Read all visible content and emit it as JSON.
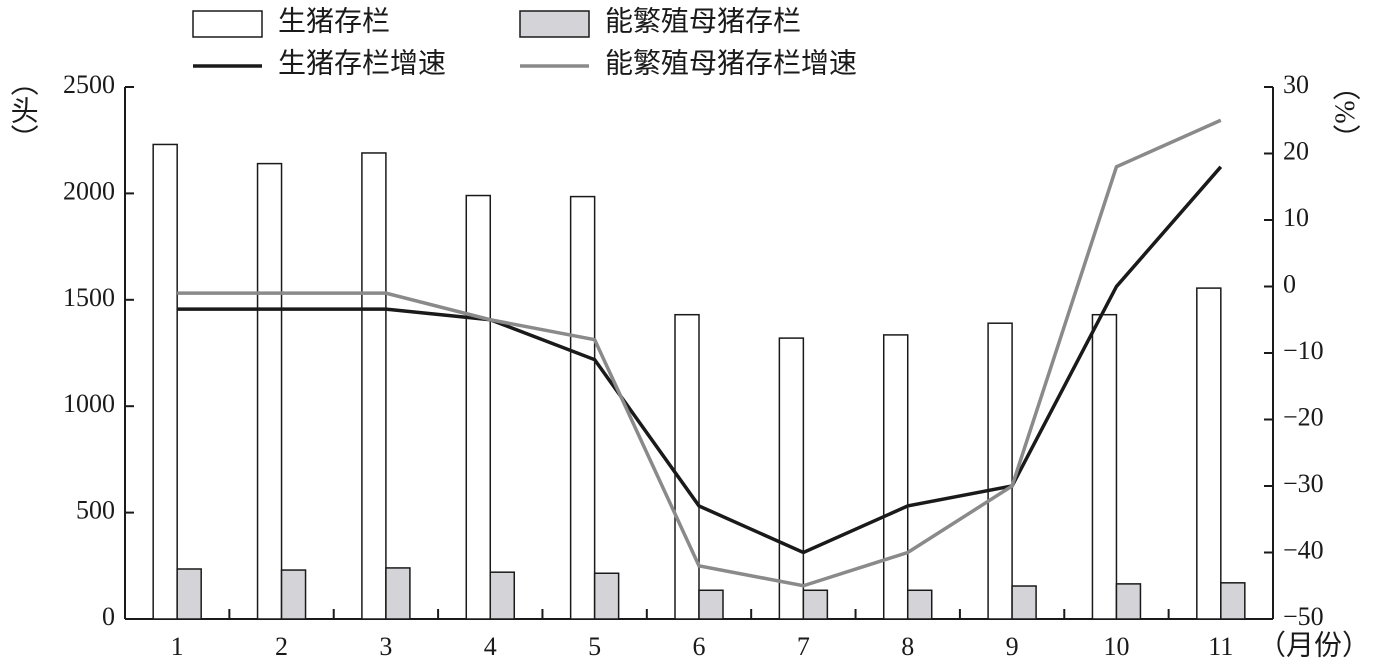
{
  "chart_data": {
    "type": "bar",
    "ylabel": "（头）",
    "y2label": "（%）",
    "xlabel": "（月份）",
    "categories": [
      "1",
      "2",
      "3",
      "4",
      "5",
      "6",
      "7",
      "8",
      "9",
      "10",
      "11"
    ],
    "series": [
      {
        "name": "生猪存栏",
        "type": "bar",
        "axis": "y",
        "color": "#ffffff",
        "values": [
          2230,
          2140,
          2190,
          1990,
          1985,
          1430,
          1320,
          1335,
          1390,
          1430,
          1555
        ]
      },
      {
        "name": "能繁殖母猪存栏",
        "type": "bar",
        "axis": "y",
        "color": "#d4d4d8",
        "values": [
          235,
          230,
          240,
          220,
          215,
          135,
          135,
          135,
          155,
          165,
          170
        ]
      },
      {
        "name": "生猪存栏增速",
        "type": "line",
        "axis": "y2",
        "color": "#1a1a1a",
        "values": [
          -3.4,
          -3.4,
          -3.4,
          -5,
          -11,
          -33,
          -40,
          -33,
          -30,
          0,
          18
        ]
      },
      {
        "name": "能繁殖母猪存栏增速",
        "type": "line",
        "axis": "y2",
        "color": "#8a8a8a",
        "values": [
          -1,
          -1,
          -1,
          -5,
          -8,
          -42,
          -45,
          -40,
          -30,
          18,
          25
        ]
      }
    ],
    "ylim": [
      0,
      2500
    ],
    "yticks": [
      0,
      500,
      1000,
      1500,
      2000,
      2500
    ],
    "y2lim": [
      -50,
      30
    ],
    "y2ticks": [
      {
        "value": -50,
        "label": "−50"
      },
      {
        "value": -40,
        "label": "−40"
      },
      {
        "value": -30,
        "label": "−30"
      },
      {
        "value": -20,
        "label": "−20"
      },
      {
        "value": -10,
        "label": "−10"
      },
      0,
      10,
      20,
      30
    ]
  }
}
